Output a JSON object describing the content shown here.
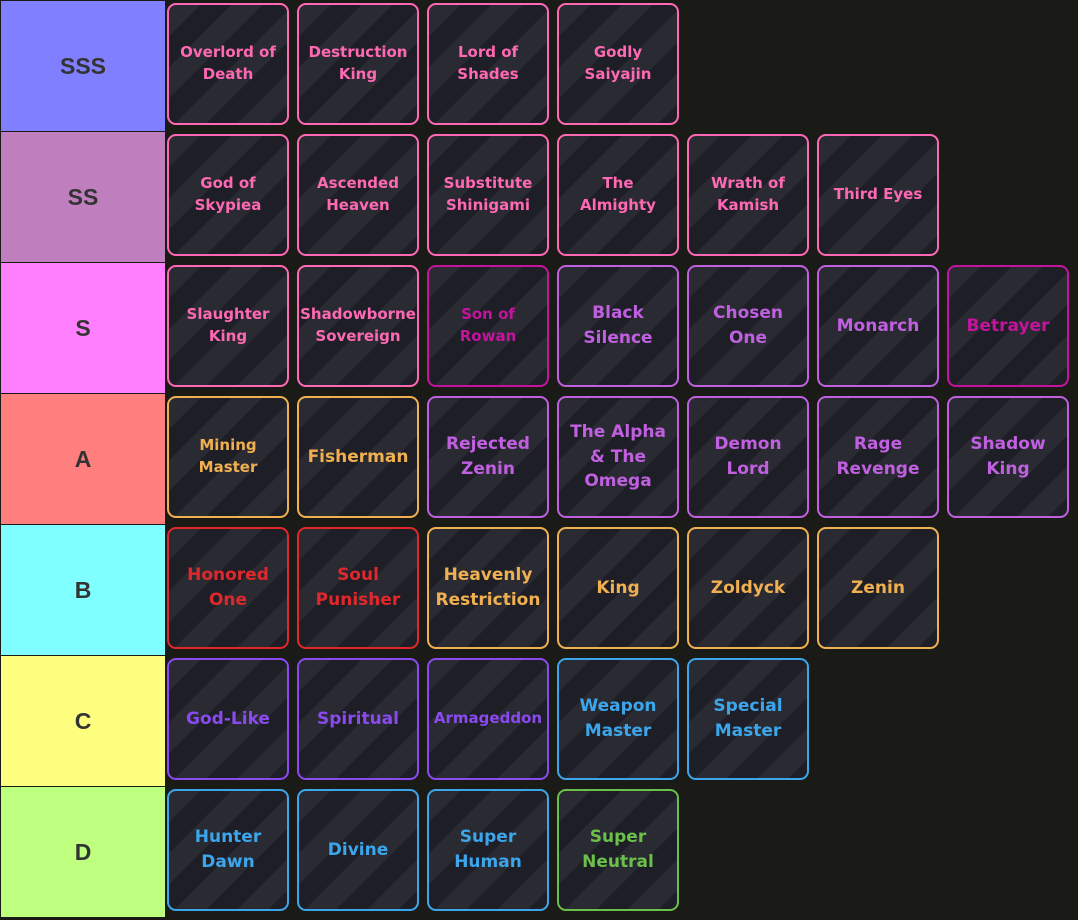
{
  "tiers": [
    {
      "label": "SSS",
      "color": "#7f7fff",
      "items": [
        {
          "name": "Overlord of Death",
          "color": "#ff69b4",
          "size": 16
        },
        {
          "name": "Destruction King",
          "color": "#ff69b4",
          "size": 16
        },
        {
          "name": "Lord of Shades",
          "color": "#ff69b4",
          "size": 16
        },
        {
          "name": "Godly Saiyajin",
          "color": "#ff69b4",
          "size": 16
        }
      ]
    },
    {
      "label": "SS",
      "color": "#bf7fbf",
      "items": [
        {
          "name": "God of Skypiea",
          "color": "#ff69b4",
          "size": 16
        },
        {
          "name": "Ascended Heaven",
          "color": "#ff69b4",
          "size": 16
        },
        {
          "name": "Substitute Shinigami",
          "color": "#ff69b4",
          "size": 16
        },
        {
          "name": "The Almighty",
          "color": "#ff69b4",
          "size": 16
        },
        {
          "name": "Wrath of Kamish",
          "color": "#ff69b4",
          "size": 16
        },
        {
          "name": "Third Eyes",
          "color": "#ff69b4",
          "size": 16
        }
      ]
    },
    {
      "label": "S",
      "color": "#ff7fff",
      "items": [
        {
          "name": "Slaughter King",
          "color": "#ff69b4",
          "size": 16
        },
        {
          "name": "Shadowborne Sovereign",
          "color": "#ff69b4",
          "size": 16
        },
        {
          "name": "Son of Rowan",
          "color": "#c4139c",
          "size": 16
        },
        {
          "name": "Black Silence",
          "color": "#c060e0",
          "size": 18
        },
        {
          "name": "Chosen One",
          "color": "#c060e0",
          "size": 18
        },
        {
          "name": "Monarch",
          "color": "#c060e0",
          "size": 18
        },
        {
          "name": "Betrayer",
          "color": "#c4139c",
          "size": 18
        }
      ]
    },
    {
      "label": "A",
      "color": "#ff7f7f",
      "items": [
        {
          "name": "Mining Master",
          "color": "#f0b050",
          "size": 16
        },
        {
          "name": "Fisherman",
          "color": "#f0b050",
          "size": 18
        },
        {
          "name": "Rejected Zenin",
          "color": "#c060e0",
          "size": 18
        },
        {
          "name": "The Alpha & The Omega",
          "color": "#c060e0",
          "size": 18
        },
        {
          "name": "Demon Lord",
          "color": "#c060e0",
          "size": 18
        },
        {
          "name": "Rage Revenge",
          "color": "#c060e0",
          "size": 18
        },
        {
          "name": "Shadow King",
          "color": "#c060e0",
          "size": 18
        }
      ]
    },
    {
      "label": "B",
      "color": "#7fffff",
      "items": [
        {
          "name": "Honored One",
          "color": "#e0282c",
          "size": 18
        },
        {
          "name": "Soul Punisher",
          "color": "#e0282c",
          "size": 18
        },
        {
          "name": "Heavenly Restriction",
          "color": "#f0b050",
          "size": 18
        },
        {
          "name": "King",
          "color": "#f0b050",
          "size": 18
        },
        {
          "name": "Zoldyck",
          "color": "#f0b050",
          "size": 18
        },
        {
          "name": "Zenin",
          "color": "#f0b050",
          "size": 18
        }
      ]
    },
    {
      "label": "C",
      "color": "#ffff7f",
      "items": [
        {
          "name": "God-Like",
          "color": "#8a4af0",
          "size": 18
        },
        {
          "name": "Spiritual",
          "color": "#8a4af0",
          "size": 18
        },
        {
          "name": "Armageddon",
          "color": "#8a4af0",
          "size": 16
        },
        {
          "name": "Weapon Master",
          "color": "#3ca6ec",
          "size": 18
        },
        {
          "name": "Special Master",
          "color": "#3ca6ec",
          "size": 18
        }
      ]
    },
    {
      "label": "D",
      "color": "#bfff7f",
      "items": [
        {
          "name": "Hunter Dawn",
          "color": "#3ca6ec",
          "size": 18
        },
        {
          "name": "Divine",
          "color": "#3ca6ec",
          "size": 18
        },
        {
          "name": "Super Human",
          "color": "#3ca6ec",
          "size": 18
        },
        {
          "name": "Super Neutral",
          "color": "#6ac04a",
          "size": 18
        }
      ]
    }
  ]
}
